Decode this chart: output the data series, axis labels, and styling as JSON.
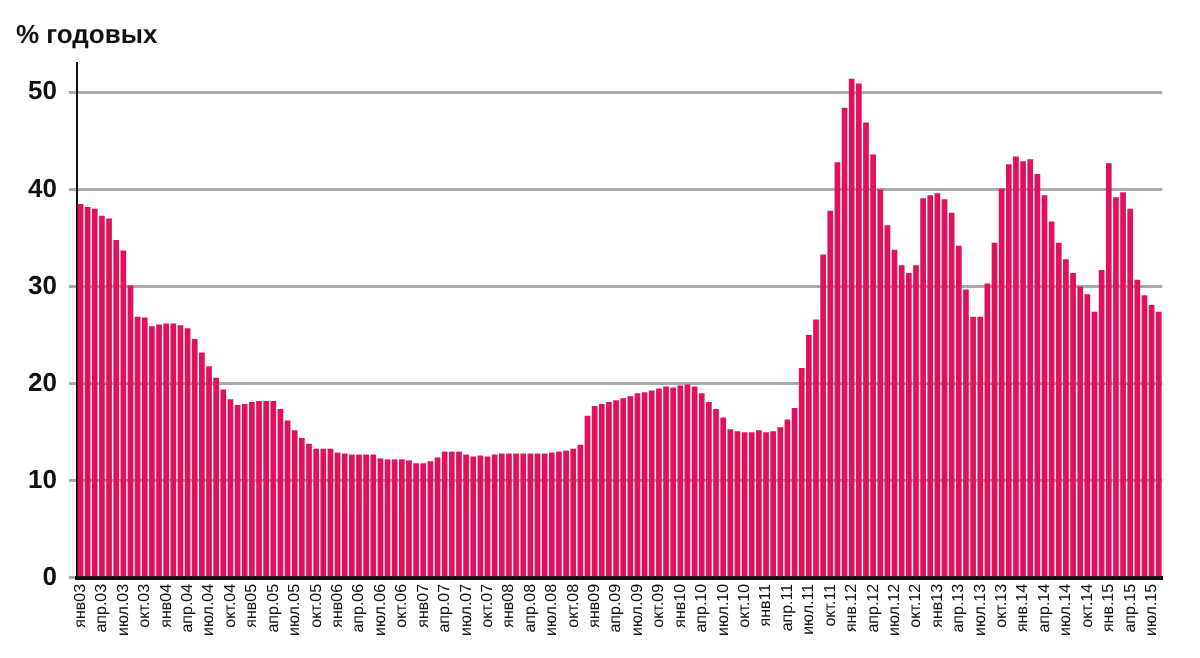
{
  "chart_data": {
    "type": "bar",
    "title": "% годовых",
    "categories": [
      "янв03",
      null,
      null,
      "апр.03",
      null,
      null,
      "июл.03",
      null,
      null,
      "окт.03",
      null,
      null,
      "янв04",
      null,
      null,
      "апр.04",
      null,
      null,
      "июл.04",
      null,
      null,
      "окт.04",
      null,
      null,
      "янв05",
      null,
      null,
      "апр.05",
      null,
      null,
      "июл.05",
      null,
      null,
      "окт.05",
      null,
      null,
      "янв06",
      null,
      null,
      "апр.06",
      null,
      null,
      "июл.06",
      null,
      null,
      "окт.06",
      null,
      null,
      "янв07",
      null,
      null,
      "апр.07",
      null,
      null,
      "июл.07",
      null,
      null,
      "окт.07",
      null,
      null,
      "янв08",
      null,
      null,
      "апр.08",
      null,
      null,
      "июл.08",
      null,
      null,
      "окт.08",
      null,
      null,
      "янв09",
      null,
      null,
      "апр.09",
      null,
      null,
      "июл.09",
      null,
      null,
      "окт.09",
      null,
      null,
      "янв10",
      null,
      null,
      "апр.10",
      null,
      null,
      "июл.10",
      null,
      null,
      "окт.10",
      null,
      null,
      "янв11",
      null,
      null,
      "апр.11",
      null,
      null,
      "июл.11",
      null,
      null,
      "окт.11",
      null,
      null,
      "янв.12",
      null,
      null,
      "апр.12",
      null,
      null,
      "июл.12",
      null,
      null,
      "окт.12",
      null,
      null,
      "янв13",
      null,
      null,
      "апр.13",
      null,
      null,
      "июл.13",
      null,
      null,
      "окт.13",
      null,
      null,
      "янв.14",
      null,
      null,
      "апр.14",
      null,
      null,
      "июл.14",
      null,
      null,
      "окт.14",
      null,
      null,
      "янв.15",
      null,
      null,
      "апр.15",
      null,
      null,
      "июл.15",
      null
    ],
    "values": [
      38.5,
      38.2,
      38,
      37.3,
      37,
      34.8,
      33.7,
      30.1,
      26.9,
      26.8,
      25.9,
      26.1,
      26.2,
      26.2,
      26.0,
      25.7,
      24.6,
      23.2,
      21.8,
      20.6,
      19.4,
      18.4,
      17.8,
      17.9,
      18.1,
      18.2,
      18.2,
      18.2,
      17.4,
      16.2,
      15.2,
      14.4,
      13.8,
      13.3,
      13.3,
      13.3,
      12.9,
      12.8,
      12.7,
      12.7,
      12.7,
      12.7,
      12.3,
      12.2,
      12.2,
      12.2,
      12.1,
      11.8,
      11.8,
      12,
      12.4,
      13,
      13,
      13,
      12.7,
      12.5,
      12.6,
      12.5,
      12.7,
      12.8,
      12.8,
      12.8,
      12.8,
      12.8,
      12.8,
      12.8,
      12.9,
      13,
      13.1,
      13.3,
      13.7,
      16.7,
      17.7,
      17.9,
      18.1,
      18.3,
      18.5,
      18.7,
      19,
      19.1,
      19.3,
      19.5,
      19.7,
      19.6,
      19.8,
      19.9,
      19.7,
      19,
      18.1,
      17.4,
      16.5,
      15.3,
      15.1,
      15,
      15,
      15.2,
      15,
      15.1,
      15.5,
      16.3,
      17.5,
      21.6,
      25,
      26.6,
      33.3,
      37.8,
      42.8,
      48.4,
      51.4,
      50.9,
      46.9,
      43.6,
      40,
      36.3,
      33.8,
      32.2,
      31.4,
      32.2,
      39.1,
      39.4,
      39.6,
      39,
      37.6,
      34.2,
      29.7,
      26.9,
      26.9,
      30.3,
      34.5,
      40.1,
      42.6,
      43.4,
      42.9,
      43.1,
      41.6,
      39.4,
      36.7,
      34.5,
      32.8,
      31.4,
      30,
      29.2,
      27.4,
      31.7,
      42.7,
      39.2,
      39.7,
      38,
      30.7,
      29.1,
      28.1,
      27.4
    ],
    "color": "#e0115f",
    "ylim": [
      0,
      53
    ],
    "yticks": [
      0,
      10,
      20,
      30,
      40,
      50
    ],
    "grid": "y",
    "legend": false
  }
}
